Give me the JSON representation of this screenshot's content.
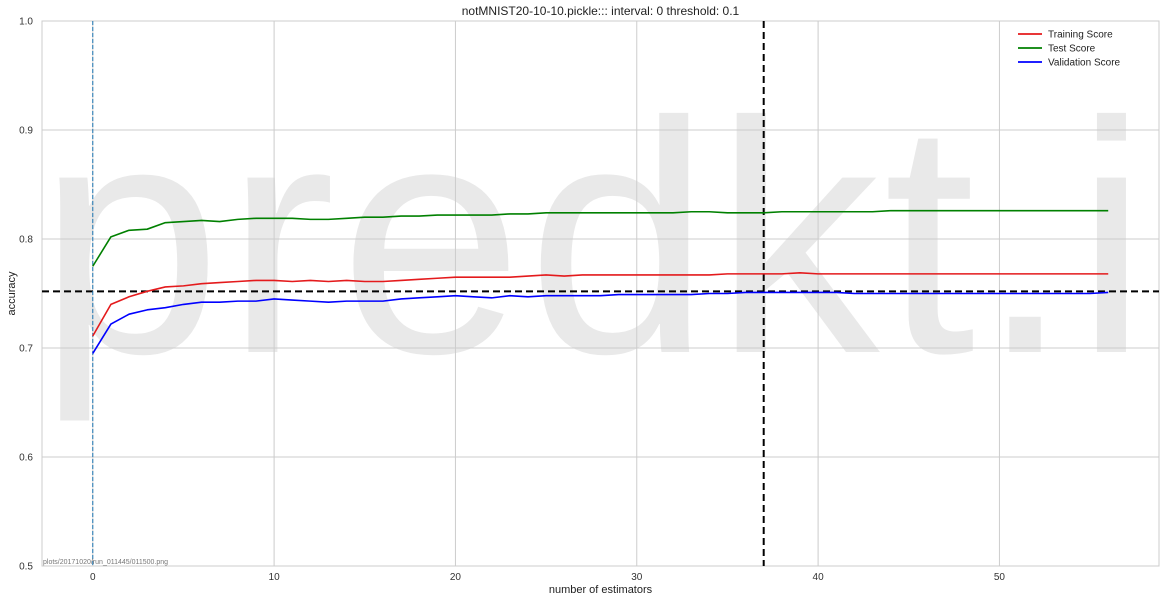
{
  "chart_data": {
    "type": "line",
    "title": "notMNIST20-10-10.pickle::: interval: 0 threshold: 0.1",
    "xlabel": "number of estimators",
    "ylabel": "accuracy",
    "xlim": [
      -2.8,
      58.8
    ],
    "ylim": [
      0.5,
      1.0
    ],
    "xticks": [
      0,
      10,
      20,
      30,
      40,
      50
    ],
    "yticks": [
      0.5,
      0.6,
      0.7,
      0.8,
      0.9,
      1.0
    ],
    "xtick_labels": [
      "0",
      "10",
      "20",
      "30",
      "40",
      "50"
    ],
    "ytick_labels": [
      "0.5",
      "0.6",
      "0.7",
      "0.8",
      "0.9",
      "1.0"
    ],
    "grid": true,
    "legend_position": "top-right",
    "x": [
      0,
      1,
      2,
      3,
      4,
      5,
      6,
      7,
      8,
      9,
      10,
      11,
      12,
      13,
      14,
      15,
      16,
      17,
      18,
      19,
      20,
      21,
      22,
      23,
      24,
      25,
      26,
      27,
      28,
      29,
      30,
      31,
      32,
      33,
      34,
      35,
      36,
      37,
      38,
      39,
      40,
      41,
      42,
      43,
      44,
      45,
      46,
      47,
      48,
      49,
      50,
      51,
      52,
      53,
      54,
      55,
      56
    ],
    "series": [
      {
        "name": "Training Score",
        "color": "#e41a1c",
        "values": [
          0.711,
          0.74,
          0.747,
          0.752,
          0.756,
          0.757,
          0.759,
          0.76,
          0.761,
          0.762,
          0.762,
          0.761,
          0.762,
          0.761,
          0.762,
          0.761,
          0.761,
          0.762,
          0.763,
          0.764,
          0.765,
          0.765,
          0.765,
          0.765,
          0.766,
          0.767,
          0.766,
          0.767,
          0.767,
          0.767,
          0.767,
          0.767,
          0.767,
          0.767,
          0.767,
          0.768,
          0.768,
          0.768,
          0.768,
          0.769,
          0.768,
          0.768,
          0.768,
          0.768,
          0.768,
          0.768,
          0.768,
          0.768,
          0.768,
          0.768,
          0.768,
          0.768,
          0.768,
          0.768,
          0.768,
          0.768,
          0.768
        ]
      },
      {
        "name": "Test Score",
        "color": "#008000",
        "values": [
          0.775,
          0.802,
          0.808,
          0.809,
          0.815,
          0.816,
          0.817,
          0.816,
          0.818,
          0.819,
          0.819,
          0.819,
          0.818,
          0.818,
          0.819,
          0.82,
          0.82,
          0.821,
          0.821,
          0.822,
          0.822,
          0.822,
          0.822,
          0.823,
          0.823,
          0.824,
          0.824,
          0.824,
          0.824,
          0.824,
          0.824,
          0.824,
          0.824,
          0.825,
          0.825,
          0.824,
          0.824,
          0.824,
          0.825,
          0.825,
          0.825,
          0.825,
          0.825,
          0.825,
          0.826,
          0.826,
          0.826,
          0.826,
          0.826,
          0.826,
          0.826,
          0.826,
          0.826,
          0.826,
          0.826,
          0.826,
          0.826
        ]
      },
      {
        "name": "Validation Score",
        "color": "#0000ff",
        "values": [
          0.695,
          0.722,
          0.731,
          0.735,
          0.737,
          0.74,
          0.742,
          0.742,
          0.743,
          0.743,
          0.745,
          0.744,
          0.743,
          0.742,
          0.743,
          0.743,
          0.743,
          0.745,
          0.746,
          0.747,
          0.748,
          0.747,
          0.746,
          0.748,
          0.747,
          0.748,
          0.748,
          0.748,
          0.748,
          0.749,
          0.749,
          0.749,
          0.749,
          0.749,
          0.75,
          0.75,
          0.751,
          0.751,
          0.751,
          0.751,
          0.751,
          0.751,
          0.75,
          0.75,
          0.75,
          0.75,
          0.75,
          0.75,
          0.75,
          0.75,
          0.75,
          0.75,
          0.75,
          0.75,
          0.75,
          0.75,
          0.751
        ]
      }
    ],
    "reference_lines": [
      {
        "orientation": "horizontal",
        "value": 0.752,
        "color": "#000000",
        "style": "dashed"
      },
      {
        "orientation": "vertical",
        "value": 37,
        "color": "#000000",
        "style": "dashed"
      },
      {
        "orientation": "vertical",
        "value": 0,
        "color": "#1f77b4",
        "style": "dashed"
      }
    ],
    "watermark": "predkt.io",
    "footnote": "plots/20171020/run_011445/011500.png"
  }
}
